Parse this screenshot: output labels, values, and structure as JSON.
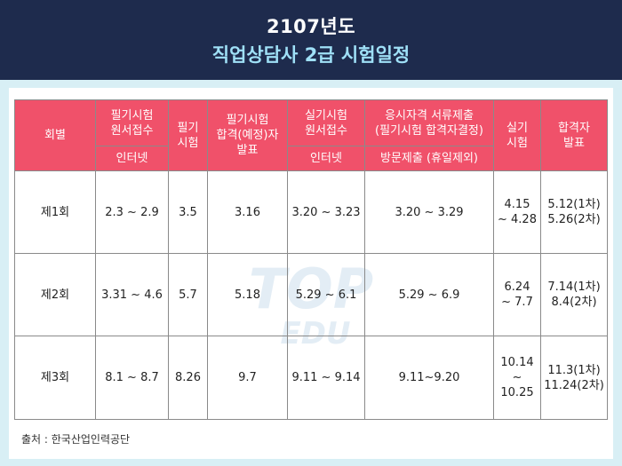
{
  "title": {
    "line1": "2107년도",
    "line2": "직업상담사 2급 시험일정"
  },
  "headers": {
    "round": "회별",
    "written_app_l1": "필기시험",
    "written_app_l2": "원서접수",
    "written_app_sub": "인터넷",
    "written_exam_l1": "필기",
    "written_exam_l2": "시험",
    "written_result_l1": "필기시험",
    "written_result_l2": "합격(예정)자",
    "written_result_l3": "발표",
    "practical_app_l1": "실기시험",
    "practical_app_l2": "원서접수",
    "practical_app_sub": "인터넷",
    "docs_l1": "응시자격 서류제출",
    "docs_l2": "(필기시험 합격자결정)",
    "docs_sub": "방문제출 (휴일제외)",
    "practical_exam_l1": "실기",
    "practical_exam_l2": "시험",
    "final_l1": "합격자",
    "final_l2": "발표"
  },
  "rows": [
    {
      "round": "제1회",
      "written_app": "2.3 ~ 2.9",
      "written_exam": "3.5",
      "written_result": "3.16",
      "practical_app": "3.20 ~ 3.23",
      "docs": "3.20 ~ 3.29",
      "practical_exam_l1": "4.15",
      "practical_exam_l2": "~ 4.28",
      "final_l1": "5.12(1차)",
      "final_l2": "5.26(2차)"
    },
    {
      "round": "제2회",
      "written_app": "3.31 ~ 4.6",
      "written_exam": "5.7",
      "written_result": "5.18",
      "practical_app": "5.29 ~ 6.1",
      "docs": "5.29 ~ 6.9",
      "practical_exam_l1": "6.24",
      "practical_exam_l2": "~ 7.7",
      "final_l1": "7.14(1차)",
      "final_l2": "8.4(2차)"
    },
    {
      "round": "제3회",
      "written_app": "8.1 ~ 8.7",
      "written_exam": "8.26",
      "written_result": "9.7",
      "practical_app": "9.11 ~ 9.14",
      "docs": "9.11~9.20",
      "practical_exam_l1": "10.14",
      "practical_exam_l2": "~ 10.25",
      "final_l1": "11.3(1차)",
      "final_l2": "11.24(2차)"
    }
  ],
  "source": "출처 : 한국산업인력공단",
  "watermark": {
    "line1": "TOP",
    "line2": "EDU"
  },
  "colors": {
    "header_bg": "#1e2b4d",
    "title_accent": "#9fe0f7",
    "frame_bg": "#d8eff5",
    "table_header": "#f0516a"
  }
}
